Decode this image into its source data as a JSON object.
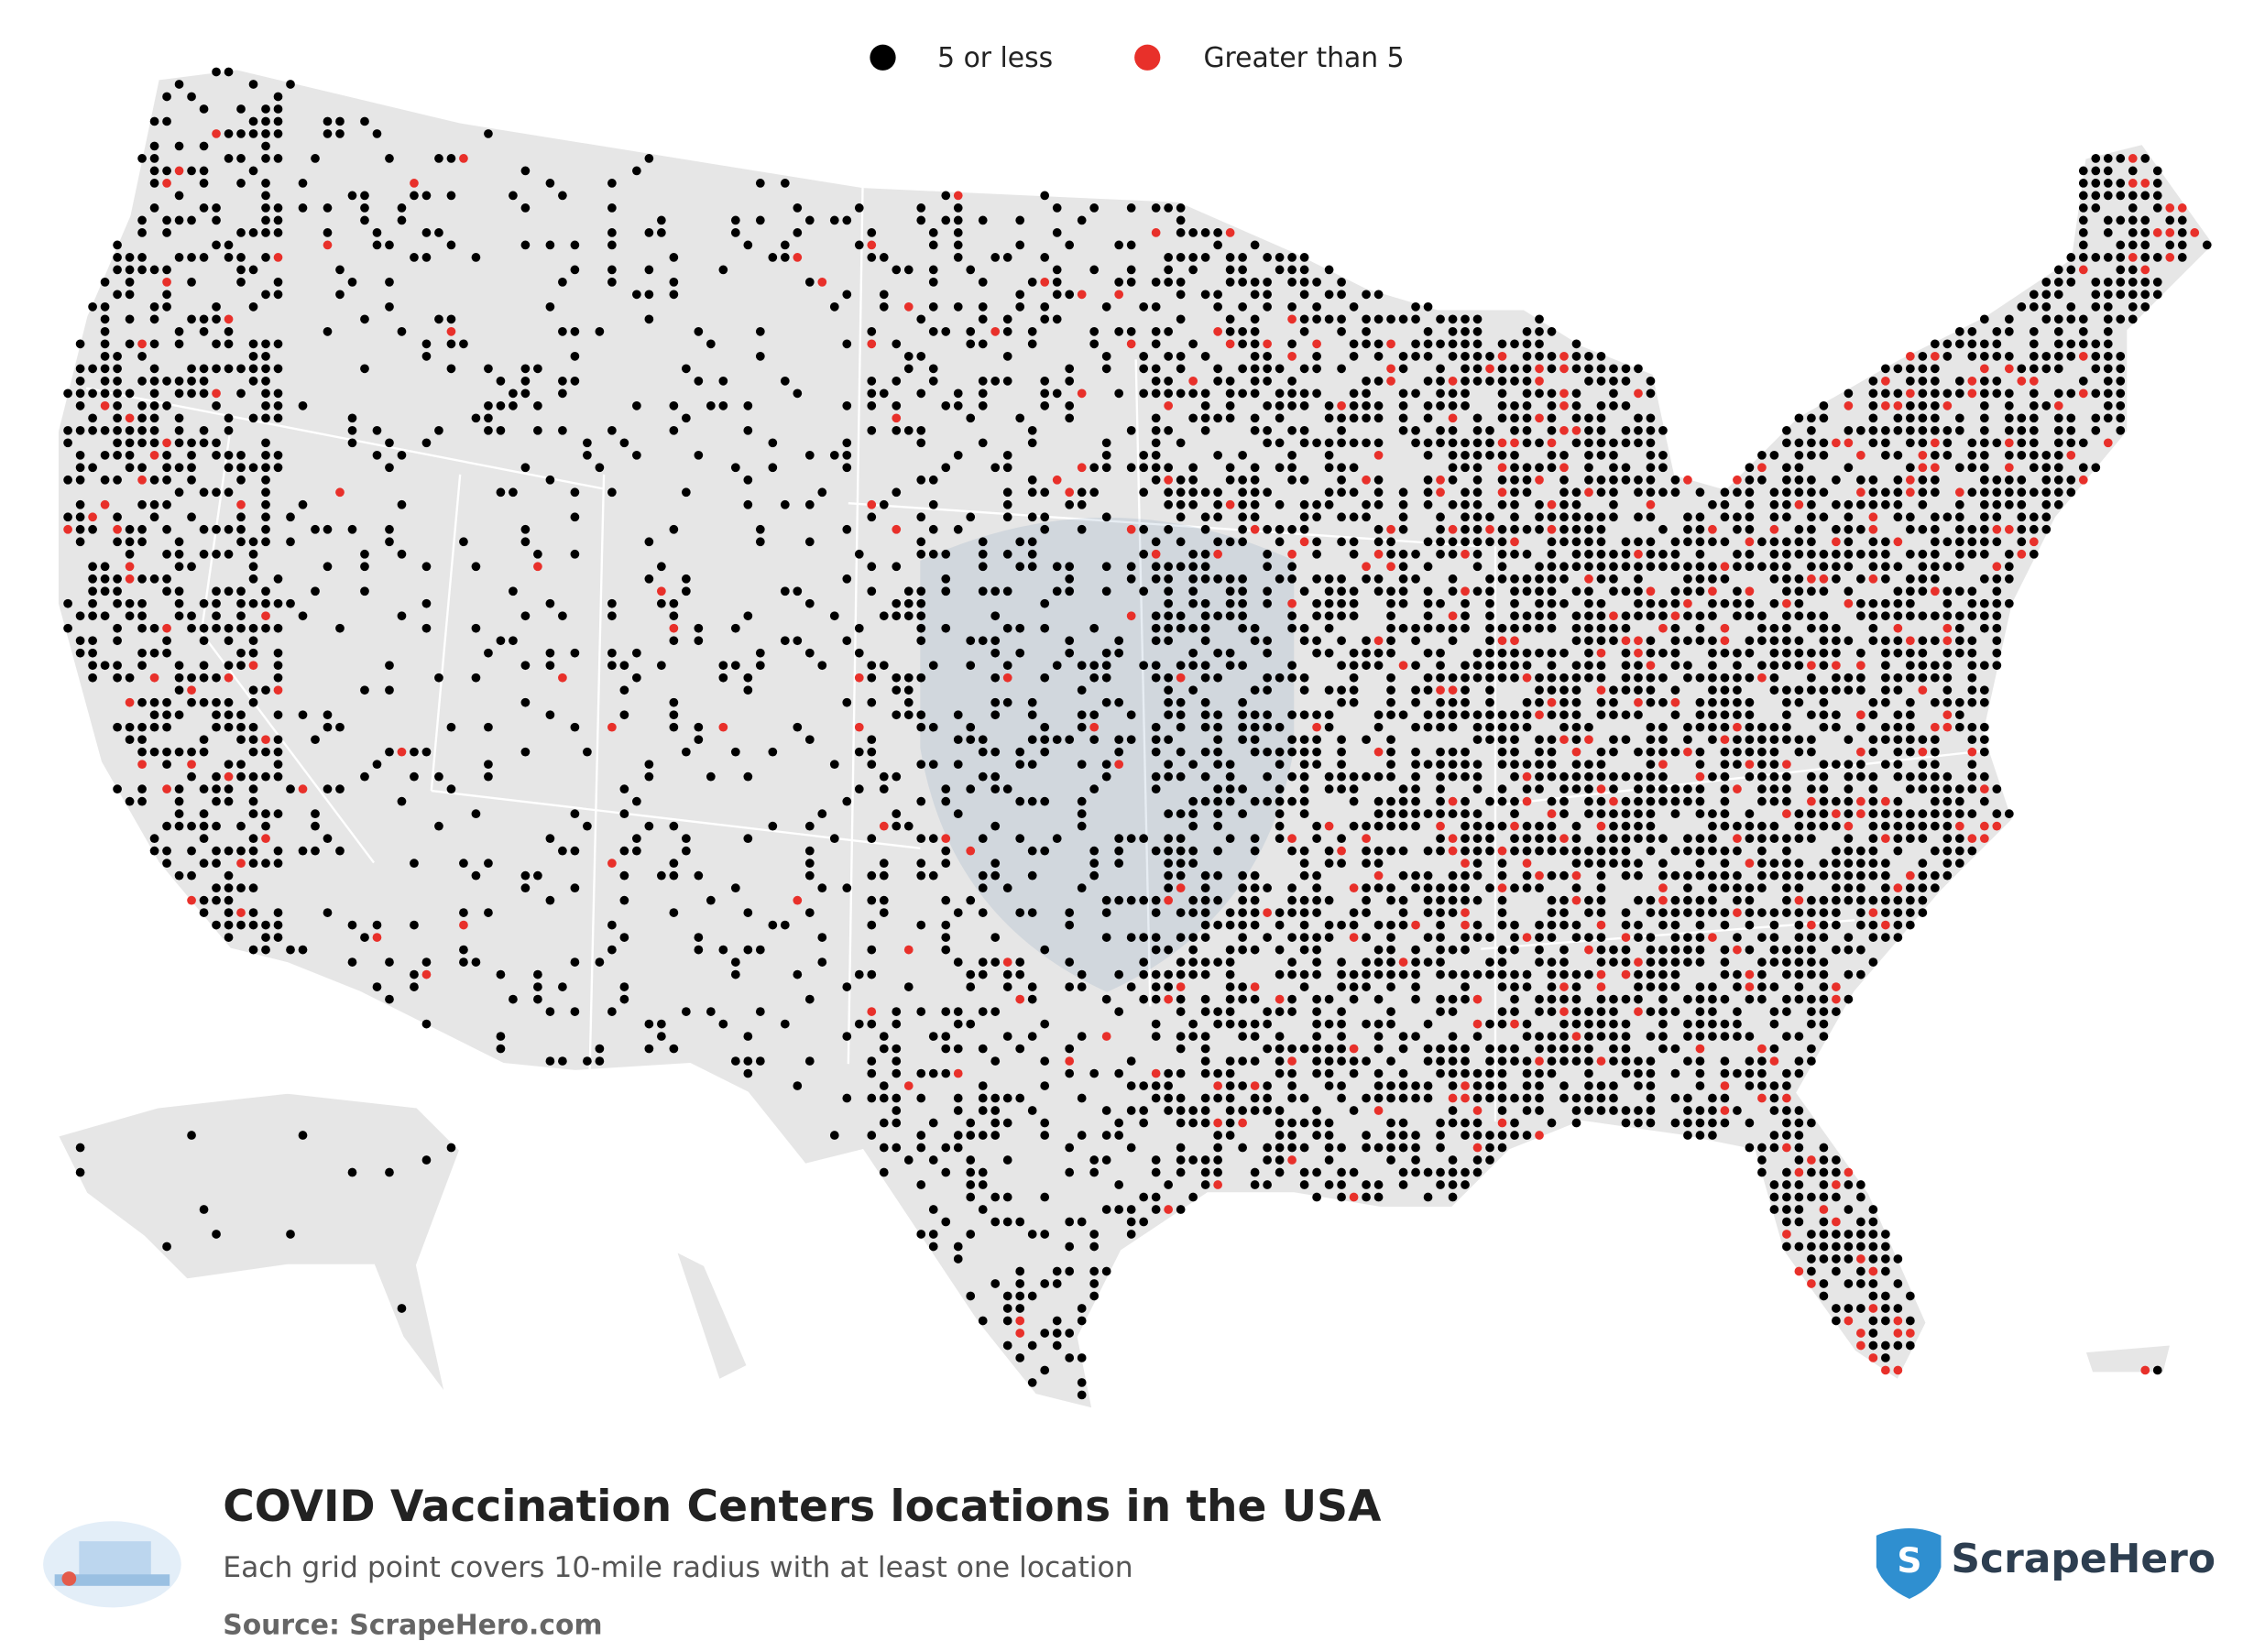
{
  "legend": {
    "items": [
      {
        "label": "5 or less",
        "color": "#000000"
      },
      {
        "label": "Greater than 5",
        "color": "#e8302a"
      }
    ]
  },
  "footer": {
    "title": "COVID Vaccination Centers locations in the USA",
    "subtitle": "Each grid point covers 10-mile radius with at least one location",
    "source": "Source: ScrapeHero.com"
  },
  "brand": "ScrapeHero"
}
